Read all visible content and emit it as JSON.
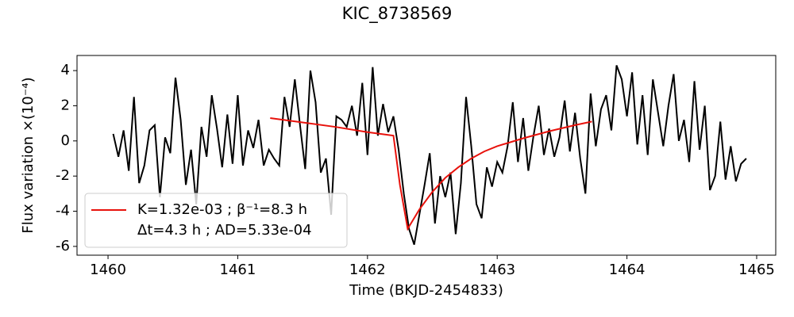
{
  "chart_data": {
    "type": "line",
    "title": "KIC_8738569",
    "xlabel": "Time (BKJD-2454833)",
    "ylabel": "Flux variation ×(10⁻⁴)",
    "xlim": [
      1459.761,
      1465.147
    ],
    "ylim": [
      -6.5,
      4.86
    ],
    "xticks": [
      1460,
      1461,
      1462,
      1463,
      1464,
      1465
    ],
    "yticks": [
      -6,
      -4,
      -2,
      0,
      2,
      4
    ],
    "grid": false,
    "legend": "lower left",
    "series": [
      {
        "color": "#000000",
        "x": [
          1460.04,
          1460.08,
          1460.12,
          1460.16,
          1460.2,
          1460.24,
          1460.28,
          1460.32,
          1460.36,
          1460.4,
          1460.44,
          1460.48,
          1460.52,
          1460.56,
          1460.6,
          1460.64,
          1460.68,
          1460.72,
          1460.76,
          1460.8,
          1460.84,
          1460.88,
          1460.92,
          1460.96,
          1461,
          1461.04,
          1461.08,
          1461.12,
          1461.16,
          1461.2,
          1461.24,
          1461.28,
          1461.32,
          1461.36,
          1461.4,
          1461.44,
          1461.48,
          1461.52,
          1461.56,
          1461.6,
          1461.64,
          1461.68,
          1461.72,
          1461.76,
          1461.8,
          1461.84,
          1461.88,
          1461.92,
          1461.96,
          1462,
          1462.04,
          1462.08,
          1462.12,
          1462.16,
          1462.2,
          1462.24,
          1462.28,
          1462.32,
          1462.36,
          1462.4,
          1462.44,
          1462.48,
          1462.52,
          1462.56,
          1462.6,
          1462.64,
          1462.68,
          1462.72,
          1462.76,
          1462.8,
          1462.84,
          1462.88,
          1462.92,
          1462.96,
          1463,
          1463.04,
          1463.08,
          1463.12,
          1463.16,
          1463.2,
          1463.24,
          1463.28,
          1463.32,
          1463.36,
          1463.4,
          1463.44,
          1463.48,
          1463.52,
          1463.56,
          1463.6,
          1463.64,
          1463.68,
          1463.72,
          1463.76,
          1463.8,
          1463.84,
          1463.88,
          1463.92,
          1463.96,
          1464,
          1464.04,
          1464.08,
          1464.12,
          1464.16,
          1464.2,
          1464.24,
          1464.28,
          1464.32,
          1464.36,
          1464.4,
          1464.44,
          1464.48,
          1464.52,
          1464.56,
          1464.6,
          1464.64,
          1464.68,
          1464.72,
          1464.76,
          1464.8,
          1464.84,
          1464.88,
          1464.92
        ],
        "values": [
          0.4,
          -0.9,
          0.6,
          -1.7,
          2.5,
          -2.4,
          -1.4,
          0.6,
          0.9,
          -3.2,
          0.2,
          -0.7,
          3.6,
          1.2,
          -2.5,
          -0.5,
          -3.6,
          0.8,
          -0.9,
          2.6,
          0.7,
          -1.5,
          1.5,
          -1.3,
          2.6,
          -1.4,
          0.6,
          -0.4,
          1.2,
          -1.4,
          -0.5,
          -1.0,
          -1.4,
          2.5,
          0.8,
          3.5,
          0.9,
          -1.6,
          4.0,
          2.2,
          -1.8,
          -1.0,
          -4.2,
          1.4,
          1.2,
          0.8,
          2.0,
          0.3,
          3.3,
          -0.8,
          4.2,
          0.3,
          2.1,
          0.5,
          1.4,
          -0.5,
          -3.0,
          -5.0,
          -5.9,
          -4.2,
          -2.5,
          -0.7,
          -4.7,
          -2.0,
          -3.2,
          -1.8,
          -5.3,
          -2.4,
          2.5,
          -0.3,
          -3.6,
          -4.4,
          -1.5,
          -2.6,
          -1.2,
          -1.8,
          -0.3,
          2.2,
          -1.2,
          1.3,
          -1.7,
          0.3,
          2.0,
          -0.8,
          0.7,
          -0.9,
          0.2,
          2.3,
          -0.6,
          1.6,
          -1.0,
          -3.0,
          2.7,
          -0.3,
          1.8,
          2.6,
          0.6,
          4.3,
          3.5,
          1.4,
          3.9,
          -0.2,
          2.6,
          -0.8,
          3.5,
          1.6,
          -0.3,
          2.0,
          3.8,
          0.0,
          1.2,
          -1.2,
          3.4,
          -0.5,
          2.0,
          -2.8,
          -2.0,
          1.1,
          -2.2,
          -0.3,
          -2.3,
          -1.3,
          -1.0
        ]
      },
      {
        "name": [
          "K=1.32e-03 ; β⁻¹=8.3 h",
          "Δt=4.3 h ; AD=5.33e-04"
        ],
        "color": "#e8120c",
        "x": [
          1461.25,
          1461.5,
          1461.75,
          1462.0,
          1462.2,
          1462.25,
          1462.31,
          1462.4,
          1462.5,
          1462.6,
          1462.7,
          1462.8,
          1462.9,
          1463.0,
          1463.2,
          1463.4,
          1463.6,
          1463.73
        ],
        "values": [
          1.3,
          1.05,
          0.8,
          0.5,
          0.3,
          -2.5,
          -5.0,
          -3.9,
          -2.9,
          -2.1,
          -1.5,
          -1.0,
          -0.6,
          -0.3,
          0.15,
          0.55,
          0.9,
          1.1
        ]
      }
    ]
  }
}
